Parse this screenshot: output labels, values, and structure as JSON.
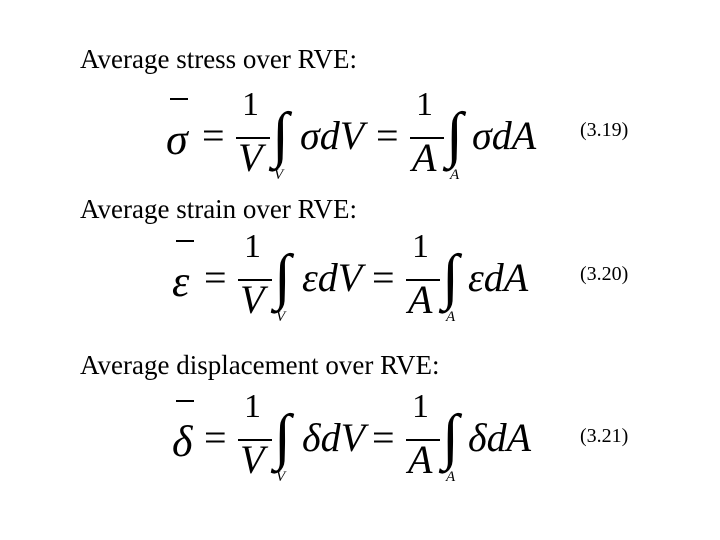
{
  "equations": [
    {
      "heading": "Average stress over RVE:",
      "lhs_symbol": "σ",
      "numerator": "1",
      "volume_symbol": "V",
      "area_symbol": "A",
      "integral_symbol": "∫",
      "equals": "=",
      "volume_integrand": "σdV",
      "area_integrand": "σdA",
      "volume_limit": "V",
      "area_limit": "A",
      "number": "(3.19)"
    },
    {
      "heading": "Average strain over RVE:",
      "lhs_symbol": "ε",
      "numerator": "1",
      "volume_symbol": "V",
      "area_symbol": "A",
      "integral_symbol": "∫",
      "equals": "=",
      "volume_integrand": "εdV",
      "area_integrand": "εdA",
      "volume_limit": "V",
      "area_limit": "A",
      "number": "(3.20)"
    },
    {
      "heading": "Average displacement over RVE:",
      "lhs_symbol": "δ",
      "numerator": "1",
      "volume_symbol": "V",
      "area_symbol": "A",
      "integral_symbol": "∫",
      "equals": "=",
      "volume_integrand": "δdV",
      "area_integrand": "δdA",
      "volume_limit": "V",
      "area_limit": "A",
      "number": "(3.21)"
    }
  ]
}
